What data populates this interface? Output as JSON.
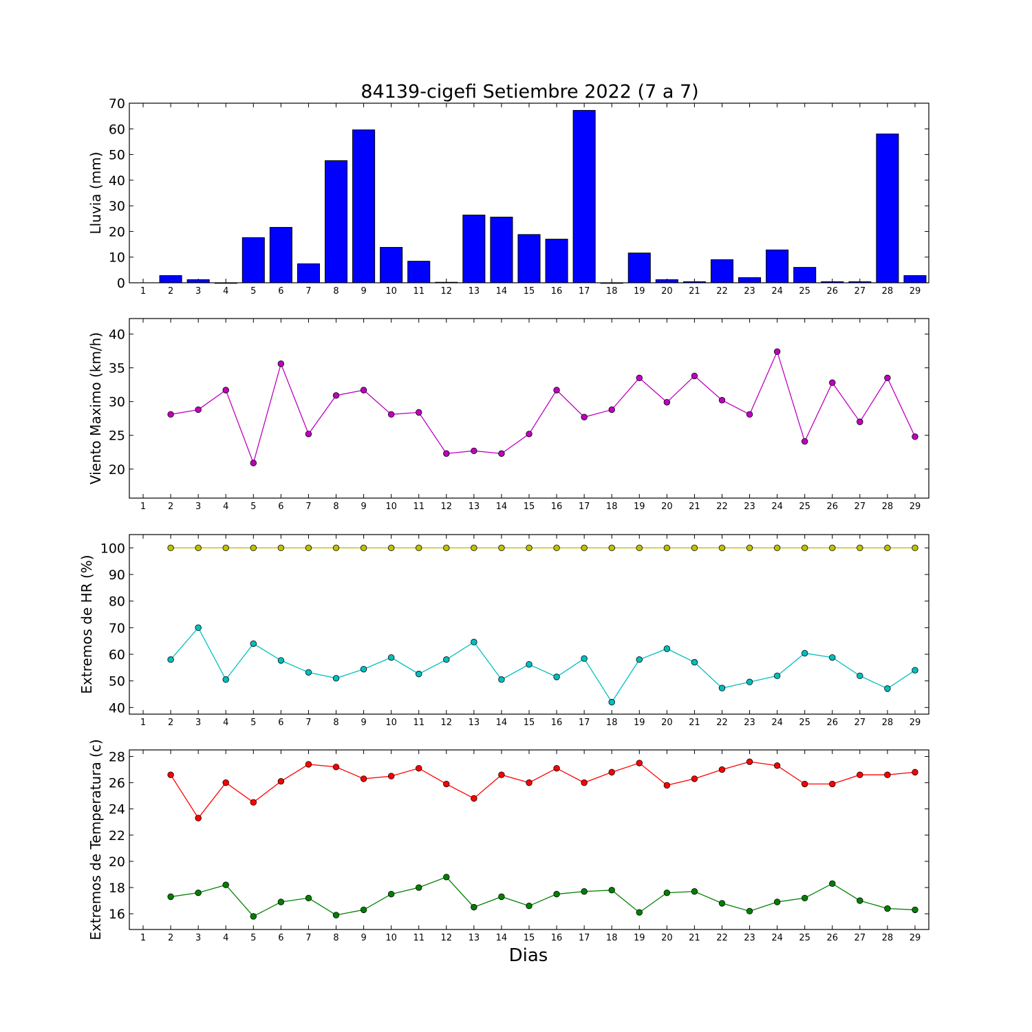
{
  "title": "84139-cigefi Setiembre 2022  (7 a 7)",
  "xlabel": "Dias",
  "chart_data": [
    {
      "type": "bar",
      "ylabel": "Lluvia (mm)",
      "ylim": [
        0,
        70
      ],
      "yticks": [
        0,
        10,
        20,
        30,
        40,
        50,
        60,
        70
      ],
      "xticks": [
        1,
        2,
        3,
        4,
        5,
        6,
        7,
        8,
        9,
        10,
        11,
        12,
        13,
        14,
        15,
        16,
        17,
        18,
        19,
        20,
        21,
        22,
        23,
        24,
        25,
        26,
        27,
        28,
        29
      ],
      "series": [
        {
          "color": "#0000ff",
          "x": [
            2,
            3,
            4,
            5,
            6,
            7,
            8,
            9,
            10,
            11,
            12,
            13,
            14,
            15,
            16,
            17,
            18,
            19,
            20,
            21,
            22,
            23,
            24,
            25,
            26,
            27,
            28,
            29
          ],
          "values": [
            2.8,
            1.2,
            0,
            17.6,
            21.6,
            7.4,
            47.6,
            59.6,
            13.8,
            8.4,
            0.2,
            26.4,
            25.6,
            18.8,
            17,
            67.2,
            0,
            11.6,
            1.2,
            0.4,
            9,
            2,
            12.8,
            6,
            0.4,
            0.4,
            58,
            2.8
          ]
        }
      ]
    },
    {
      "type": "line",
      "ylabel": "Viento Maximo (km/h)",
      "ylim": [
        15.7,
        42.3
      ],
      "yticks": [
        20,
        25,
        30,
        35,
        40
      ],
      "xticks": [
        1,
        2,
        3,
        4,
        5,
        6,
        7,
        8,
        9,
        10,
        11,
        12,
        13,
        14,
        15,
        16,
        17,
        18,
        19,
        20,
        21,
        22,
        23,
        24,
        25,
        26,
        27,
        28,
        29
      ],
      "series": [
        {
          "color": "#bf00bf",
          "x": [
            2,
            3,
            4,
            5,
            6,
            7,
            8,
            9,
            10,
            11,
            12,
            13,
            14,
            15,
            16,
            17,
            18,
            19,
            20,
            21,
            22,
            23,
            24,
            25,
            26,
            27,
            28,
            29
          ],
          "values": [
            28.1,
            28.8,
            31.7,
            20.9,
            35.6,
            25.2,
            30.9,
            31.7,
            28.1,
            28.4,
            22.3,
            22.7,
            22.3,
            25.2,
            31.7,
            27.7,
            28.8,
            33.5,
            29.9,
            33.8,
            30.2,
            28.1,
            37.4,
            24.1,
            32.8,
            27,
            33.5,
            24.8
          ]
        }
      ]
    },
    {
      "type": "line",
      "ylabel": "Extremos de HR (%)",
      "ylim": [
        37.5,
        105
      ],
      "yticks": [
        40,
        50,
        60,
        70,
        80,
        90,
        100
      ],
      "xticks": [
        1,
        2,
        3,
        4,
        5,
        6,
        7,
        8,
        9,
        10,
        11,
        12,
        13,
        14,
        15,
        16,
        17,
        18,
        19,
        20,
        21,
        22,
        23,
        24,
        25,
        26,
        27,
        28,
        29
      ],
      "series": [
        {
          "color": "#bfbf00",
          "x": [
            2,
            3,
            4,
            5,
            6,
            7,
            8,
            9,
            10,
            11,
            12,
            13,
            14,
            15,
            16,
            17,
            18,
            19,
            20,
            21,
            22,
            23,
            24,
            25,
            26,
            27,
            28,
            29
          ],
          "values": [
            100,
            100,
            100,
            100,
            100,
            100,
            100,
            100,
            100,
            100,
            100,
            100,
            100,
            100,
            100,
            100,
            100,
            100,
            100,
            100,
            100,
            100,
            100,
            100,
            100,
            100,
            100,
            100
          ]
        },
        {
          "color": "#00bfbf",
          "x": [
            2,
            3,
            4,
            5,
            6,
            7,
            8,
            9,
            10,
            11,
            12,
            13,
            14,
            15,
            16,
            17,
            18,
            19,
            20,
            21,
            22,
            23,
            24,
            25,
            26,
            27,
            28,
            29
          ],
          "values": [
            58,
            70,
            50.5,
            64,
            57.7,
            53.2,
            51,
            54.4,
            58.8,
            52.6,
            58,
            64.6,
            50.5,
            56.2,
            51.5,
            58.4,
            42,
            58,
            62.1,
            57,
            47.3,
            49.6,
            51.9,
            60.4,
            58.8,
            51.9,
            47.1,
            54
          ]
        }
      ]
    },
    {
      "type": "line",
      "ylabel": "Extremos de Temperatura (c)",
      "ylim": [
        14.8,
        28.5
      ],
      "yticks": [
        16,
        18,
        20,
        22,
        24,
        26,
        28
      ],
      "xticks": [
        1,
        2,
        3,
        4,
        5,
        6,
        7,
        8,
        9,
        10,
        11,
        12,
        13,
        14,
        15,
        16,
        17,
        18,
        19,
        20,
        21,
        22,
        23,
        24,
        25,
        26,
        27,
        28,
        29
      ],
      "series": [
        {
          "color": "#ff0000",
          "x": [
            2,
            3,
            4,
            5,
            6,
            7,
            8,
            9,
            10,
            11,
            12,
            13,
            14,
            15,
            16,
            17,
            18,
            19,
            20,
            21,
            22,
            23,
            24,
            25,
            26,
            27,
            28,
            29
          ],
          "values": [
            26.6,
            23.3,
            26,
            24.5,
            26.1,
            27.4,
            27.2,
            26.3,
            26.5,
            27.1,
            25.9,
            24.8,
            26.6,
            26,
            27.1,
            26,
            26.8,
            27.5,
            25.8,
            26.3,
            27,
            27.6,
            27.3,
            25.9,
            25.9,
            26.6,
            26.6,
            26.8
          ]
        },
        {
          "color": "#008000",
          "x": [
            2,
            3,
            4,
            5,
            6,
            7,
            8,
            9,
            10,
            11,
            12,
            13,
            14,
            15,
            16,
            17,
            18,
            19,
            20,
            21,
            22,
            23,
            24,
            25,
            26,
            27,
            28,
            29
          ],
          "values": [
            17.3,
            17.6,
            18.2,
            15.8,
            16.9,
            17.2,
            15.9,
            16.3,
            17.5,
            18,
            18.8,
            16.5,
            17.3,
            16.6,
            17.5,
            17.7,
            17.8,
            16.1,
            17.6,
            17.7,
            16.8,
            16.2,
            16.9,
            17.2,
            18.3,
            17,
            16.4,
            16.3
          ]
        }
      ]
    }
  ]
}
